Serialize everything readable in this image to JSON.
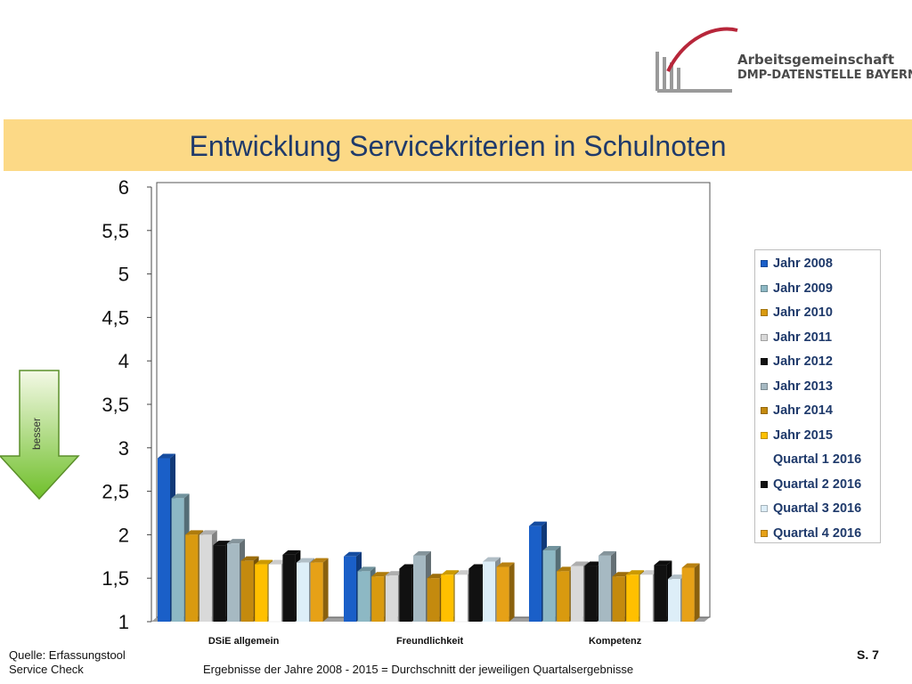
{
  "logo": {
    "line1": "Arbeitsgemeinschaft",
    "line2": "DMP-DATENSTELLE BAYERN"
  },
  "title": "Entwicklung Servicekriterien in Schulnoten",
  "arrow_label": "besser",
  "footer": {
    "source_line1": "Quelle: Erfassungstool",
    "source_line2": "Service Check",
    "note": "Ergebnisse der Jahre 2008 - 2015 = Durchschnitt der jeweiligen Quartalsergebnisse",
    "page": "S. 7"
  },
  "chart_data": {
    "type": "bar",
    "title": "",
    "xlabel": "",
    "ylabel": "",
    "ylim": [
      1,
      6
    ],
    "yticks": [
      "1",
      "1,5",
      "2",
      "2,5",
      "3",
      "3,5",
      "4",
      "4,5",
      "5",
      "5,5",
      "6"
    ],
    "grid": false,
    "legend_position": "right",
    "categories": [
      "DSiE allgemein",
      "Freundlichkeit",
      "Kompetenz"
    ],
    "series": [
      {
        "name": "Jahr 2008",
        "color": "#1a5fc8",
        "values": [
          2.88,
          1.75,
          2.1
        ]
      },
      {
        "name": "Jahr 2009",
        "color": "#8db8c4",
        "values": [
          2.42,
          1.58,
          1.82
        ]
      },
      {
        "name": "Jahr 2010",
        "color": "#d99a0f",
        "values": [
          2.0,
          1.52,
          1.58
        ]
      },
      {
        "name": "Jahr 2011",
        "color": "#d9d9d9",
        "values": [
          2.0,
          1.53,
          1.64
        ]
      },
      {
        "name": "Jahr 2012",
        "color": "#111111",
        "values": [
          1.88,
          1.61,
          1.64
        ]
      },
      {
        "name": "Jahr 2013",
        "color": "#a6b9c2",
        "values": [
          1.9,
          1.76,
          1.76
        ]
      },
      {
        "name": "Jahr 2014",
        "color": "#c48a0e",
        "values": [
          1.7,
          1.5,
          1.52
        ]
      },
      {
        "name": "Jahr 2015",
        "color": "#ffc000",
        "values": [
          1.66,
          1.54,
          1.54
        ]
      },
      {
        "name": "Quartal 1 2016",
        "color": "#ffffff",
        "values": [
          1.66,
          1.54,
          1.54
        ]
      },
      {
        "name": "Quartal 2 2016",
        "color": "#111111",
        "values": [
          1.77,
          1.61,
          1.65
        ]
      },
      {
        "name": "Quartal 3 2016",
        "color": "#ddeef8",
        "values": [
          1.68,
          1.69,
          1.49
        ]
      },
      {
        "name": "Quartal 4 2016",
        "color": "#e6a117",
        "values": [
          1.68,
          1.63,
          1.62
        ]
      }
    ]
  }
}
